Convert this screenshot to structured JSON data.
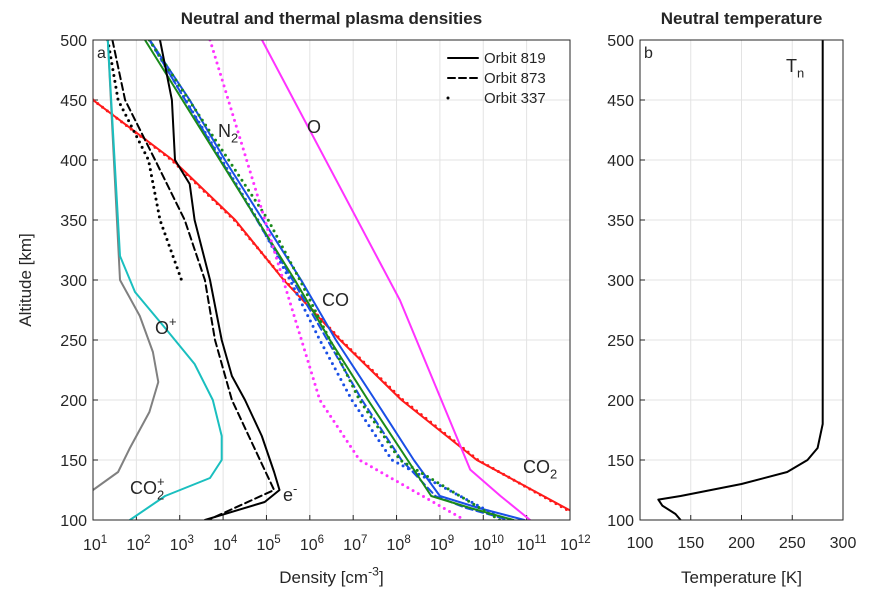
{
  "chart_data": [
    {
      "type": "line",
      "title": "Neutral and thermal plasma densities",
      "panel": "a",
      "xscale": "log",
      "xlim": [
        10,
        1000000000000.0
      ],
      "ylim": [
        100,
        500
      ],
      "grid": true,
      "legend_position": "top-right",
      "ylabel": "Altitude [km]",
      "xlabel": {
        "parts": [
          {
            "text": "Density [cm"
          },
          {
            "text": "-3",
            "pos": "sup"
          },
          {
            "text": "]"
          }
        ]
      },
      "xticks": [
        {
          "value": 10,
          "label": "10",
          "exp": "1"
        },
        {
          "value": 100,
          "label": "10",
          "exp": "2"
        },
        {
          "value": 1000,
          "label": "10",
          "exp": "3"
        },
        {
          "value": 10000,
          "label": "10",
          "exp": "4"
        },
        {
          "value": 100000,
          "label": "10",
          "exp": "5"
        },
        {
          "value": 1000000,
          "label": "10",
          "exp": "6"
        },
        {
          "value": 10000000.0,
          "label": "10",
          "exp": "7"
        },
        {
          "value": 100000000.0,
          "label": "10",
          "exp": "8"
        },
        {
          "value": 1000000000.0,
          "label": "10",
          "exp": "9"
        },
        {
          "value": 10000000000.0,
          "label": "10",
          "exp": "10"
        },
        {
          "value": 100000000000.0,
          "label": "10",
          "exp": "11"
        },
        {
          "value": 1000000000000.0,
          "label": "10",
          "exp": "12"
        }
      ],
      "yticks": [
        100,
        150,
        200,
        250,
        300,
        350,
        400,
        450,
        500
      ],
      "legend": [
        {
          "name": "Orbit 819",
          "dash": "solid"
        },
        {
          "name": "Orbit 873",
          "dash": "dashed"
        },
        {
          "name": "Orbit 337",
          "dash": "dotted"
        }
      ],
      "series": [
        {
          "color": "#ff1a1a",
          "dash": "solid",
          "y": [
            450,
            400,
            350,
            300,
            250,
            200,
            150,
            108
          ],
          "x": [
            10,
            690,
            19000,
            250000,
            5000000,
            130000000,
            7100000000,
            1000000000000.0
          ]
        },
        {
          "color": "#ff1a1a",
          "dash": "dotted",
          "y": [
            450,
            400,
            350,
            300,
            250,
            200,
            150,
            108
          ],
          "x": [
            10,
            650,
            18000,
            260000,
            5200000,
            140000000,
            7500000000,
            900000000000
          ]
        },
        {
          "color": "#1a4fe6",
          "dash": "solid",
          "y": [
            500,
            450,
            400,
            300,
            250,
            200,
            150,
            120,
            110,
            100
          ],
          "x": [
            204,
            1700,
            11000,
            630000,
            4000000,
            32000000,
            250000000,
            1000000000,
            7900000000,
            89000000000
          ]
        },
        {
          "color": "#1a4fe6",
          "dash": "dashed",
          "y": [
            500,
            300,
            200,
            150,
            120,
            110,
            100
          ],
          "x": [
            200,
            400000,
            16000000,
            130000000,
            790000000,
            4000000000,
            40000000000
          ]
        },
        {
          "color": "#1a4fe6",
          "dash": "dotted",
          "y": [
            500,
            350,
            300,
            250,
            200,
            150,
            100
          ],
          "x": [
            200,
            63000,
            350000,
            1700000,
            9300000,
            78000000,
            32000000000
          ]
        },
        {
          "color": "#1a8a1a",
          "dash": "solid",
          "y": [
            500,
            300,
            250,
            200,
            150,
            120,
            110,
            100
          ],
          "x": [
            158,
            450000,
            2900000,
            22000000,
            180000000,
            630000000,
            5000000000,
            50000000000
          ]
        },
        {
          "color": "#1a8a1a",
          "dash": "dotted",
          "y": [
            500,
            350,
            300,
            250,
            200,
            150,
            100
          ],
          "x": [
            200,
            110000,
            590000,
            2900000,
            14000000,
            120000000,
            24000000000
          ]
        },
        {
          "color": "#ff33ff",
          "dash": "solid",
          "y": [
            500,
            283,
            142,
            120,
            100
          ],
          "x": [
            79000,
            120000000,
            5000000000,
            25000000000,
            120000000000
          ]
        },
        {
          "color": "#ff33ff",
          "dash": "dotted",
          "y": [
            500,
            200,
            150,
            100
          ],
          "x": [
            5000,
            1700000,
            14000000,
            3700000000
          ]
        },
        {
          "color": "#000000",
          "dash": "solid",
          "y": [
            500,
            450,
            400,
            380,
            350,
            300,
            250,
            220,
            200,
            170,
            140,
            125,
            115,
            100
          ],
          "x": [
            350,
            660,
            780,
            1700,
            2200,
            5000,
            9300,
            16000,
            32000,
            78000,
            150000,
            200000,
            91000,
            3800
          ]
        },
        {
          "color": "#000000",
          "dash": "dashed",
          "y": [
            500,
            450,
            400,
            350,
            300,
            250,
            200,
            150,
            125,
            100
          ],
          "x": [
            28,
            55,
            270,
            1300,
            3800,
            6500,
            16000,
            71000,
            150000,
            4500
          ]
        },
        {
          "color": "#000000",
          "dash": "dotted",
          "y": [
            500,
            450,
            400,
            350,
            300
          ],
          "x": [
            22,
            38,
            190,
            350,
            1100
          ]
        },
        {
          "color": "#808080",
          "dash": "solid",
          "y": [
            500,
            300,
            270,
            240,
            215,
            190,
            160,
            140,
            125
          ],
          "x": [
            22,
            42,
            120,
            240,
            320,
            200,
            71,
            38,
            10
          ]
        },
        {
          "color": "#1abfbf",
          "dash": "solid",
          "y": [
            500,
            320,
            290,
            260,
            230,
            200,
            170,
            150,
            135,
            120,
            100
          ],
          "x": [
            22,
            42,
            93,
            460,
            2200,
            5800,
            9300,
            9300,
            5000,
            460,
            71
          ]
        }
      ],
      "annotations": [
        {
          "color": "#1a4fe6",
          "parts": [
            {
              "text": "N"
            },
            {
              "text": "2",
              "pos": "sub"
            }
          ]
        },
        {
          "color": "#ff33ff",
          "parts": [
            {
              "text": "O"
            }
          ]
        },
        {
          "color": "#1a8a1a",
          "parts": [
            {
              "text": "CO"
            }
          ]
        },
        {
          "color": "#ff1a1a",
          "parts": [
            {
              "text": "CO"
            },
            {
              "text": "2",
              "pos": "sub"
            }
          ]
        },
        {
          "color": "#808080",
          "parts": [
            {
              "text": "O"
            },
            {
              "text": "+",
              "pos": "sup"
            }
          ]
        },
        {
          "color": "#1abfbf",
          "parts": [
            {
              "text": "CO"
            },
            {
              "text": "2",
              "pos": "sub"
            },
            {
              "text": "+",
              "pos": "sup"
            }
          ]
        },
        {
          "color": "#000000",
          "parts": [
            {
              "text": "e"
            },
            {
              "text": "-",
              "pos": "sup"
            }
          ]
        }
      ]
    },
    {
      "type": "line",
      "title": "Neutral temperature",
      "panel": "b",
      "xscale": "linear",
      "xlim": [
        100,
        300
      ],
      "ylim": [
        100,
        500
      ],
      "grid": true,
      "xlabel": {
        "parts": [
          {
            "text": "Temperature [K]"
          }
        ]
      },
      "xticks": [
        100,
        150,
        200,
        250,
        300
      ],
      "yticks": [
        100,
        150,
        200,
        250,
        300,
        350,
        400,
        450,
        500
      ],
      "series": [
        {
          "color": "#000000",
          "dash": "solid",
          "y": [
            500,
            180,
            160,
            150,
            140,
            130,
            120,
            117,
            112,
            105,
            100
          ],
          "x": [
            280,
            280,
            275,
            265,
            245,
            200,
            140,
            118,
            122,
            135,
            140
          ]
        }
      ],
      "annotations": [
        {
          "color": "#000000",
          "parts": [
            {
              "text": "T"
            },
            {
              "text": "n",
              "pos": "sub"
            }
          ]
        }
      ]
    }
  ]
}
